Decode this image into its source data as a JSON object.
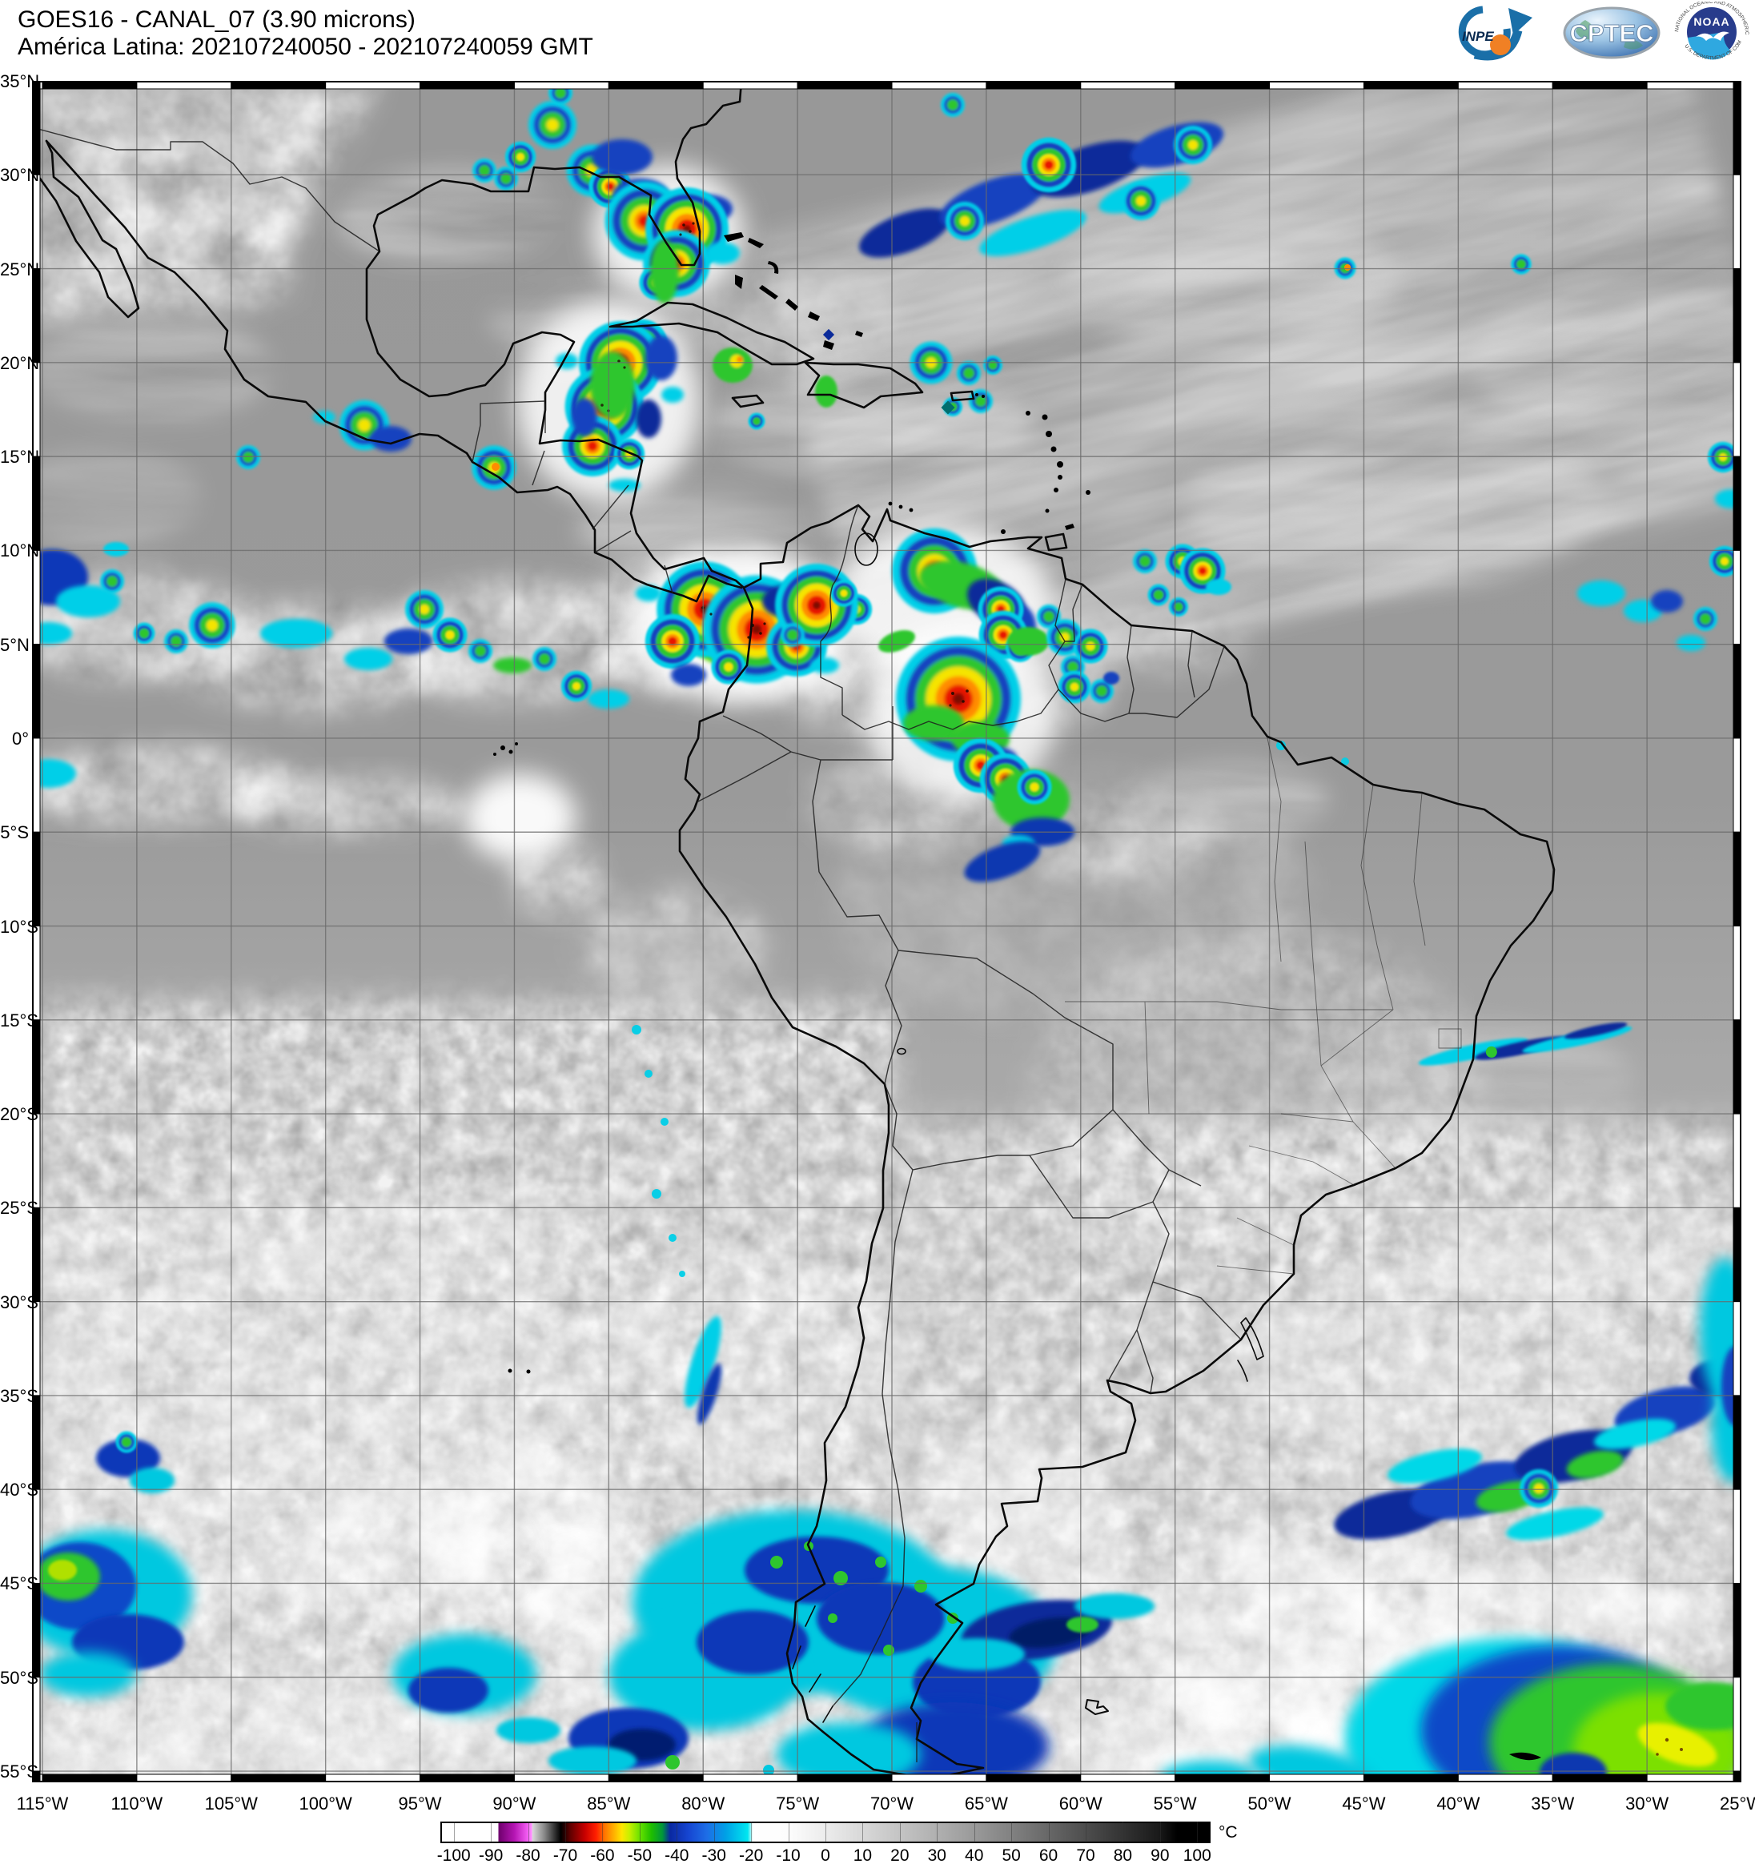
{
  "header": {
    "title_line1": "GOES16 - CANAL_07 (3.90 microns)",
    "title_line2": "América Latina: 202107240050 - 202107240059 GMT",
    "logos": {
      "inpe": {
        "label": "INPE"
      },
      "cptec": {
        "label": "CPTEC"
      },
      "noaa": {
        "label": "NOAA",
        "ring_text_top": "NATIONAL OCEANIC AND ATMOSPHERIC ADMINISTRATION",
        "ring_text_bottom": "U.S. DEPARTMENT OF COMMERCE"
      }
    }
  },
  "map": {
    "lat_ticks": [
      "35°N",
      "30°N",
      "25°N",
      "20°N",
      "15°N",
      "10°N",
      "5°N",
      "0°",
      "5°S",
      "10°S",
      "15°S",
      "20°S",
      "25°S",
      "30°S",
      "35°S",
      "40°S",
      "45°S",
      "50°S",
      "55°S"
    ],
    "lon_ticks": [
      "115°W",
      "110°W",
      "105°W",
      "100°W",
      "95°W",
      "90°W",
      "85°W",
      "80°W",
      "75°W",
      "70°W",
      "65°W",
      "60°W",
      "55°W",
      "50°W",
      "45°W",
      "40°W",
      "35°W",
      "30°W",
      "25°W"
    ]
  },
  "colorbar": {
    "unit": "°C",
    "range": [
      -100,
      100
    ],
    "tick_labels": [
      -100,
      -90,
      -80,
      -70,
      -60,
      -50,
      -40,
      -30,
      -20,
      -10,
      0,
      10,
      20,
      30,
      40,
      50,
      60,
      70,
      80,
      90,
      100
    ],
    "stops": [
      {
        "t": -103.6,
        "c": "#ffffff"
      },
      {
        "t": -88.5,
        "c": "#ffffff"
      },
      {
        "t": -88.2,
        "c": "#70006e"
      },
      {
        "t": -84,
        "c": "#b616b4"
      },
      {
        "t": -80.5,
        "c": "#f35df3"
      },
      {
        "t": -79.3,
        "c": "#ff9bff"
      },
      {
        "t": -79.1,
        "c": "#d8d8d8"
      },
      {
        "t": -76,
        "c": "#8a8a8a"
      },
      {
        "t": -73,
        "c": "#2e2e2e"
      },
      {
        "t": -71.5,
        "c": "#000000"
      },
      {
        "t": -69,
        "c": "#5e0000"
      },
      {
        "t": -65,
        "c": "#c80000"
      },
      {
        "t": -62,
        "c": "#ff1e00"
      },
      {
        "t": -59.5,
        "c": "#ff7800"
      },
      {
        "t": -57,
        "c": "#ffb400"
      },
      {
        "t": -55,
        "c": "#ffe600"
      },
      {
        "t": -53,
        "c": "#c8f000"
      },
      {
        "t": -50,
        "c": "#64e100"
      },
      {
        "t": -47,
        "c": "#1ebe00"
      },
      {
        "t": -44,
        "c": "#00963c"
      },
      {
        "t": -42,
        "c": "#0a28a0"
      },
      {
        "t": -37,
        "c": "#1646d2"
      },
      {
        "t": -32,
        "c": "#1e6ee6"
      },
      {
        "t": -27,
        "c": "#00a0e6"
      },
      {
        "t": -21,
        "c": "#00e6f0"
      },
      {
        "t": -19.6,
        "c": "#ffffff"
      },
      {
        "t": -10,
        "c": "#fdfdfd"
      },
      {
        "t": 0,
        "c": "#ececec"
      },
      {
        "t": 10,
        "c": "#d8d8d8"
      },
      {
        "t": 20,
        "c": "#c4c4c4"
      },
      {
        "t": 30,
        "c": "#b0b0b0"
      },
      {
        "t": 40,
        "c": "#9a9a9a"
      },
      {
        "t": 50,
        "c": "#828282"
      },
      {
        "t": 60,
        "c": "#686868"
      },
      {
        "t": 70,
        "c": "#4e4e4e"
      },
      {
        "t": 80,
        "c": "#343434"
      },
      {
        "t": 90,
        "c": "#1a1a1a"
      },
      {
        "t": 95,
        "c": "#000000"
      },
      {
        "t": 103.6,
        "c": "#000000"
      }
    ]
  }
}
